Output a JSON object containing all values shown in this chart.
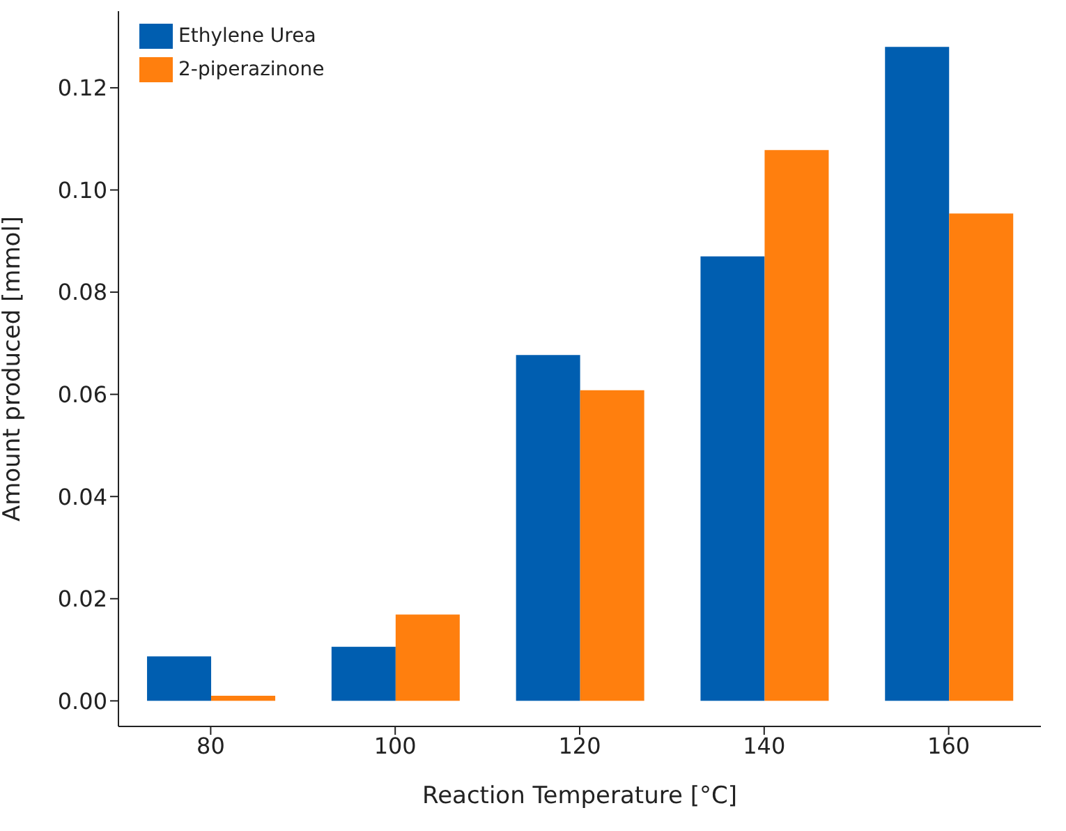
{
  "chart_data": {
    "type": "bar",
    "xlabel": "Reaction Temperature [°C]",
    "ylabel": "Amount produced [mmol]",
    "categories": [
      "80",
      "100",
      "120",
      "140",
      "160"
    ],
    "series": [
      {
        "name": "Ethylene Urea",
        "color": "#005eb0",
        "values": [
          0.0087,
          0.0106,
          0.0677,
          0.087,
          0.128
        ]
      },
      {
        "name": "2-piperazinone",
        "color": "#ff7f0e",
        "values": [
          0.001,
          0.0169,
          0.0608,
          0.1078,
          0.0954
        ]
      }
    ],
    "ylim": [
      -0.005,
      0.135
    ],
    "yticks": [
      {
        "value": 0,
        "label": "0.00"
      },
      {
        "value": 0.02,
        "label": "0.02"
      },
      {
        "value": 0.04,
        "label": "0.04"
      },
      {
        "value": 0.06,
        "label": "0.06"
      },
      {
        "value": 0.08,
        "label": "0.08"
      },
      {
        "value": 0.1,
        "label": "0.10"
      },
      {
        "value": 0.12,
        "label": "0.12"
      }
    ],
    "grid": false,
    "legend": "top left"
  }
}
